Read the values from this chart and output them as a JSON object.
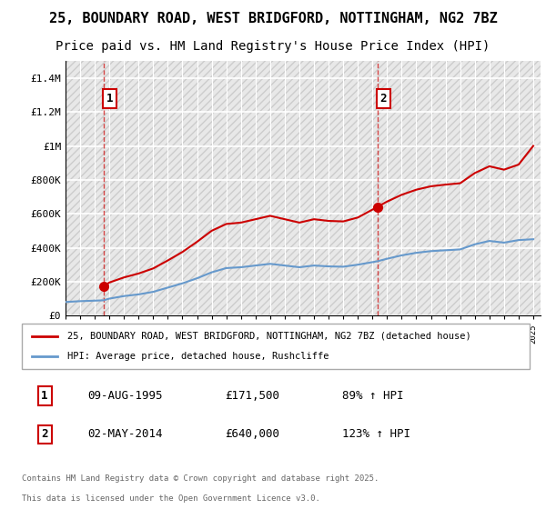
{
  "title_line1": "25, BOUNDARY ROAD, WEST BRIDGFORD, NOTTINGHAM, NG2 7BZ",
  "title_line2": "Price paid vs. HM Land Registry's House Price Index (HPI)",
  "title_fontsize": 11,
  "subtitle_fontsize": 10,
  "ylim": [
    0,
    1500000
  ],
  "yticks": [
    0,
    200000,
    400000,
    600000,
    800000,
    1000000,
    1200000,
    1400000
  ],
  "ytick_labels": [
    "£0",
    "£200K",
    "£400K",
    "£600K",
    "£800K",
    "£1M",
    "£1.2M",
    "£1.4M"
  ],
  "red_line_color": "#cc0000",
  "blue_line_color": "#6699cc",
  "dot_color": "#cc0000",
  "sale1_x": 1995.6,
  "sale1_y": 171500,
  "sale1_label": "1",
  "sale2_x": 2014.33,
  "sale2_y": 640000,
  "sale2_label": "2",
  "legend_red_label": "25, BOUNDARY ROAD, WEST BRIDGFORD, NOTTINGHAM, NG2 7BZ (detached house)",
  "legend_blue_label": "HPI: Average price, detached house, Rushcliffe",
  "footer_line1": "Contains HM Land Registry data © Crown copyright and database right 2025.",
  "footer_line2": "This data is licensed under the Open Government Licence v3.0.",
  "table_row1": [
    "1",
    "09-AUG-1995",
    "£171,500",
    "89% ↑ HPI"
  ],
  "table_row2": [
    "2",
    "02-MAY-2014",
    "£640,000",
    "123% ↑ HPI"
  ],
  "hpi_years": [
    1993,
    1994,
    1995,
    1995.6,
    1996,
    1997,
    1998,
    1999,
    2000,
    2001,
    2002,
    2003,
    2004,
    2005,
    2006,
    2007,
    2008,
    2009,
    2010,
    2011,
    2012,
    2013,
    2014,
    2014.33,
    2015,
    2016,
    2017,
    2018,
    2019,
    2020,
    2021,
    2022,
    2023,
    2024,
    2025
  ],
  "hpi_values": [
    80000,
    85000,
    88000,
    90000,
    100000,
    115000,
    125000,
    140000,
    165000,
    190000,
    220000,
    255000,
    280000,
    285000,
    295000,
    305000,
    295000,
    285000,
    295000,
    290000,
    288000,
    300000,
    315000,
    320000,
    335000,
    355000,
    370000,
    380000,
    385000,
    390000,
    420000,
    440000,
    430000,
    445000,
    450000
  ],
  "price_years": [
    1995.6,
    1996,
    1997,
    1998,
    1999,
    2000,
    2001,
    2002,
    2003,
    2004,
    2005,
    2006,
    2007,
    2008,
    2009,
    2010,
    2011,
    2012,
    2013,
    2014.33,
    2015,
    2016,
    2017,
    2018,
    2019,
    2020,
    2021,
    2022,
    2023,
    2024,
    2025
  ],
  "price_values": [
    171500,
    195000,
    225000,
    248000,
    278000,
    325000,
    375000,
    435000,
    500000,
    540000,
    548000,
    568000,
    588000,
    568000,
    548000,
    568000,
    558000,
    555000,
    578000,
    640000,
    672000,
    712000,
    742000,
    762000,
    772000,
    780000,
    840000,
    880000,
    860000,
    890000,
    1000000
  ],
  "xmin": 1993,
  "xmax": 2025.5
}
